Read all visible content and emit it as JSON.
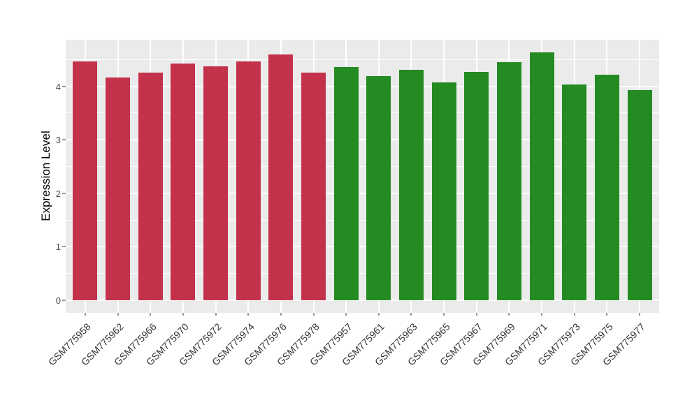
{
  "chart_data": {
    "type": "bar",
    "title": "",
    "xlabel": "",
    "ylabel": "Expression Level",
    "categories": [
      "GSM775958",
      "GSM775962",
      "GSM775966",
      "GSM775970",
      "GSM775972",
      "GSM775974",
      "GSM775976",
      "GSM775978",
      "GSM775957",
      "GSM775961",
      "GSM775963",
      "GSM775965",
      "GSM775967",
      "GSM775969",
      "GSM775971",
      "GSM775973",
      "GSM775975",
      "GSM775977"
    ],
    "values": [
      4.46,
      4.17,
      4.25,
      4.42,
      4.37,
      4.46,
      4.59,
      4.26,
      4.36,
      4.19,
      4.31,
      4.07,
      4.27,
      4.45,
      4.64,
      4.04,
      4.22,
      3.93
    ],
    "bar_color_keys": [
      "crimson",
      "crimson",
      "crimson",
      "crimson",
      "crimson",
      "crimson",
      "crimson",
      "crimson",
      "green",
      "green",
      "green",
      "green",
      "green",
      "green",
      "green",
      "green",
      "green",
      "green"
    ],
    "colors": {
      "crimson": "#C3314B",
      "green": "#238B22",
      "panel_background": "#EBEBEB",
      "grid": "#FFFFFF",
      "tick": "#999999",
      "axis_text": "#4D4D4D",
      "x_axis_text": "#333333",
      "axis_title": "#000000"
    },
    "yticks": [
      0,
      1,
      2,
      3,
      4
    ],
    "ytick_labels": [
      "0",
      "1",
      "2",
      "3",
      "4"
    ],
    "minor_yticks": [
      0.5,
      1.5,
      2.5,
      3.5,
      4.5
    ],
    "ylim": [
      -0.235,
      4.87
    ],
    "grid": true,
    "legend": "none"
  }
}
